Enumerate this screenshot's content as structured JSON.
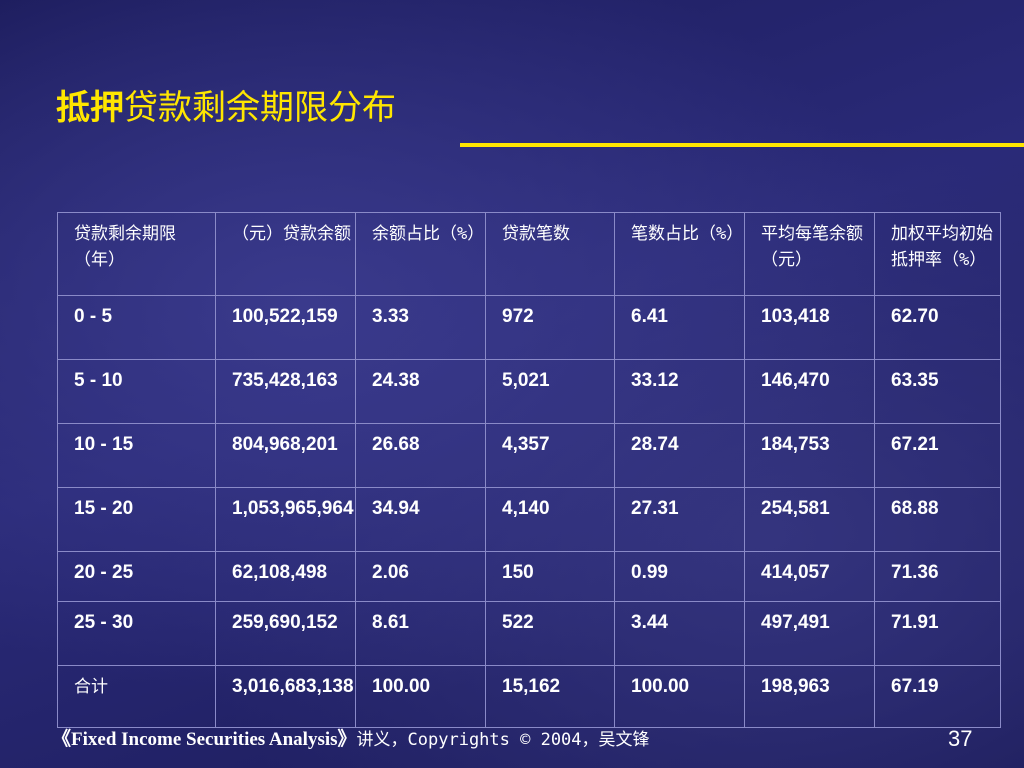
{
  "slide": {
    "title_strong": "抵押",
    "title_rest": "贷款剩余期限分布"
  },
  "table": {
    "headers": [
      "贷款剩余期限（年）",
      "（元）贷款余额",
      "余额占比（%）",
      "贷款笔数",
      "笔数占比（%）",
      "平均每笔余额（元）",
      "加权平均初始抵押率（%）"
    ],
    "rows": [
      [
        "0 - 5",
        "100,522,159",
        "3.33",
        "972",
        "6.41",
        "103,418",
        "62.70"
      ],
      [
        "5 - 10",
        "735,428,163",
        "24.38",
        "5,021",
        "33.12",
        "146,470",
        "63.35"
      ],
      [
        "10 - 15",
        "804,968,201",
        "26.68",
        "4,357",
        "28.74",
        "184,753",
        "67.21"
      ],
      [
        "15 - 20",
        "1,053,965,964",
        "34.94",
        "4,140",
        "27.31",
        "254,581",
        "68.88"
      ],
      [
        "20 - 25",
        "62,108,498",
        "2.06",
        "150",
        "0.99",
        "414,057",
        "71.36"
      ],
      [
        "25 - 30",
        "259,690,152",
        "8.61",
        "522",
        "3.44",
        "497,491",
        "71.91"
      ],
      [
        "合计",
        "3,016,683,138",
        "100.00",
        "15,162",
        "100.00",
        "198,963",
        "67.19"
      ]
    ]
  },
  "footer": {
    "book": "《Fixed Income Securities Analysis》",
    "rest": "讲义，Copyrights © 2004，吴文锋"
  },
  "page_number": "37",
  "colors": {
    "accent": "#ffe600",
    "background": "#2a2a78",
    "grid": "#8a8ac8"
  }
}
